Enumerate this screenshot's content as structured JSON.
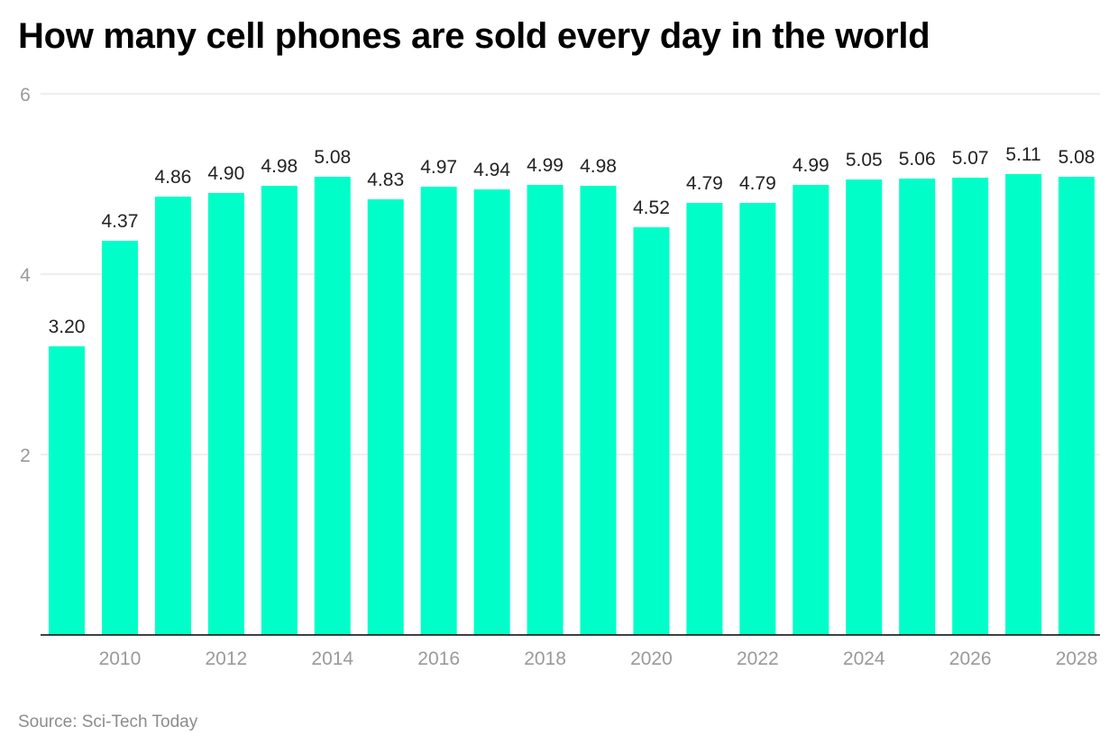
{
  "chart_data": {
    "type": "bar",
    "title": "How many cell phones are sold every day in the world",
    "source": "Source: Sci-Tech Today",
    "categories": [
      "2009",
      "2010",
      "2011",
      "2012",
      "2013",
      "2014",
      "2015",
      "2016",
      "2017",
      "2018",
      "2019",
      "2020",
      "2021",
      "2022",
      "2023",
      "2024",
      "2025",
      "2026",
      "2027",
      "2028"
    ],
    "values": [
      3.2,
      4.37,
      4.86,
      4.9,
      4.98,
      5.08,
      4.83,
      4.97,
      4.94,
      4.99,
      4.98,
      4.52,
      4.79,
      4.79,
      4.99,
      5.05,
      5.06,
      5.07,
      5.11,
      5.08
    ],
    "data_labels": [
      "3.20",
      "4.37",
      "4.86",
      "4.90",
      "4.98",
      "5.08",
      "4.83",
      "4.97",
      "4.94",
      "4.99",
      "4.98",
      "4.52",
      "4.79",
      "4.79",
      "4.99",
      "5.05",
      "5.06",
      "5.07",
      "5.11",
      "5.08"
    ],
    "x_tick_labels": [
      "2010",
      "2012",
      "2014",
      "2016",
      "2018",
      "2020",
      "2022",
      "2024",
      "2026",
      "2028"
    ],
    "y_ticks": [
      2,
      4,
      6
    ],
    "y_tick_labels": [
      "2",
      "4",
      "6"
    ],
    "ylim": [
      0,
      6
    ],
    "xlabel": "",
    "ylabel": "",
    "grid": true,
    "bar_color": "#00ffc8",
    "grid_color": "#e3e3e3",
    "axis_color": "#000000"
  }
}
